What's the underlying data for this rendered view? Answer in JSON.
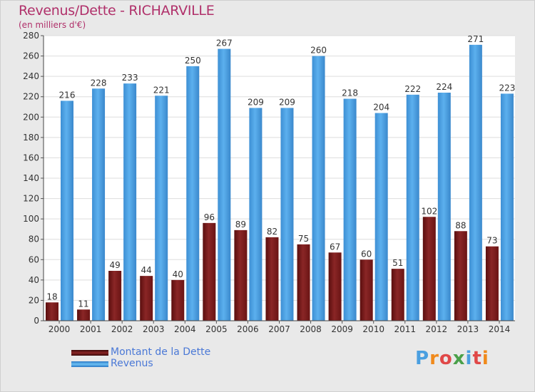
{
  "header": {
    "title": "Revenus/Dette - RICHARVILLE",
    "subtitle": "(en milliers d'€)"
  },
  "legend": {
    "items": [
      {
        "label": "Montant de la Dette",
        "color": "#7a1a1a"
      },
      {
        "label": "Revenus",
        "color": "#4a9fe0"
      }
    ]
  },
  "logo": {
    "text": "Proxiti",
    "letter_colors": [
      "#4a9fe0",
      "#f08a1c",
      "#e04848",
      "#4aa04a",
      "#4a9fe0",
      "#e04848",
      "#f08a1c"
    ]
  },
  "chart_data": {
    "type": "bar",
    "title": "Revenus/Dette - RICHARVILLE",
    "subtitle": "(en milliers d'€)",
    "categories": [
      "2000",
      "2001",
      "2002",
      "2003",
      "2004",
      "2005",
      "2006",
      "2007",
      "2008",
      "2009",
      "2010",
      "2011",
      "2012",
      "2013",
      "2014"
    ],
    "series": [
      {
        "name": "Montant de la Dette",
        "color": "#7a1a1a",
        "values": [
          18,
          11,
          49,
          44,
          40,
          96,
          89,
          82,
          75,
          67,
          60,
          51,
          102,
          88,
          73
        ]
      },
      {
        "name": "Revenus",
        "color": "#4a9fe0",
        "values": [
          216,
          228,
          233,
          221,
          250,
          267,
          209,
          209,
          260,
          218,
          204,
          222,
          224,
          271,
          223
        ]
      }
    ],
    "ylim": [
      0,
      280
    ],
    "yticks": [
      0,
      20,
      40,
      60,
      80,
      100,
      120,
      140,
      160,
      180,
      200,
      220,
      240,
      260,
      280
    ],
    "grid": true,
    "legend_position": "bottom-left"
  }
}
